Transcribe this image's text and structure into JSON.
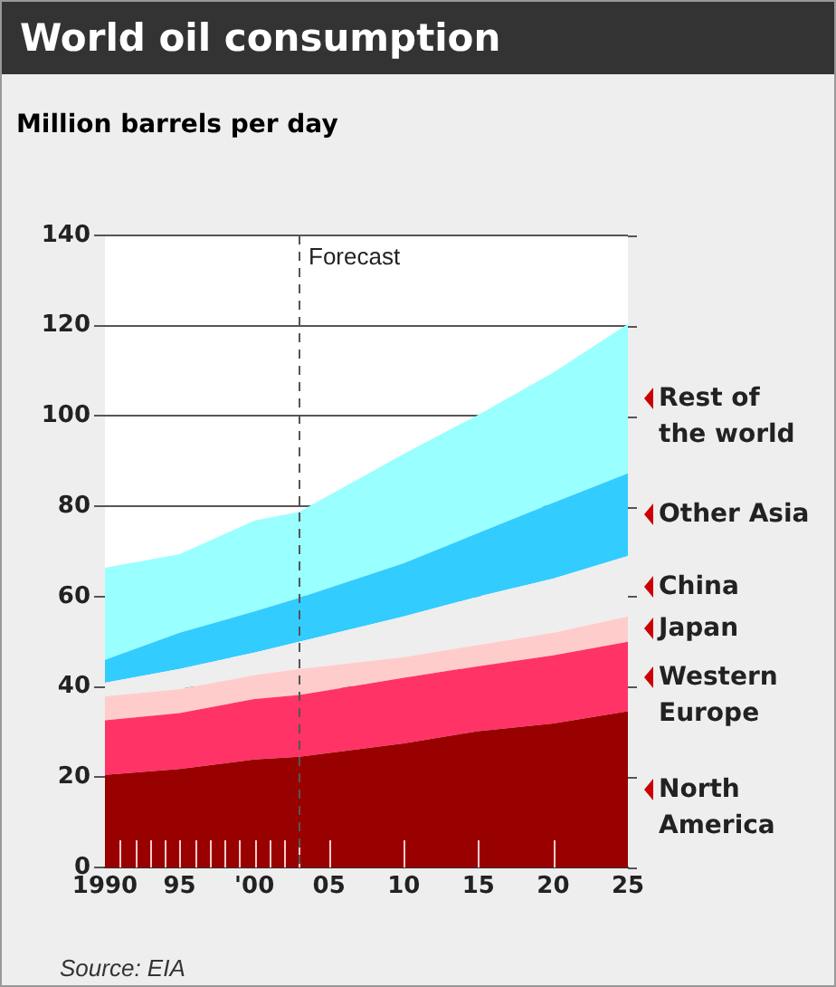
{
  "chart_data": {
    "type": "area",
    "stacked": true,
    "title": "World oil consumption",
    "ylabel": "Million barrels per day",
    "x": [
      1990,
      1995,
      2000,
      2003,
      2010,
      2015,
      2020,
      2025
    ],
    "series": [
      {
        "name": "North America",
        "color": "#990000",
        "values": [
          20.5,
          21.8,
          23.9,
          24.5,
          27.5,
          30.2,
          31.9,
          34.6
        ]
      },
      {
        "name": "Western Europe",
        "color": "#ff3366",
        "values": [
          12.1,
          12.4,
          13.4,
          13.7,
          14.5,
          14.4,
          15.1,
          15.4
        ]
      },
      {
        "name": "Japan",
        "color": "#ffcccc",
        "values": [
          5.3,
          5.3,
          5.3,
          5.8,
          4.6,
          4.7,
          5.0,
          5.6
        ]
      },
      {
        "name": "China",
        "color": "#eeeeee",
        "values": [
          3.0,
          4.5,
          5.0,
          6.0,
          9.0,
          10.7,
          12.0,
          13.4
        ]
      },
      {
        "name": "Other Asia",
        "color": "#33ccff",
        "values": [
          5.1,
          8.0,
          9.1,
          9.7,
          11.8,
          14.1,
          16.8,
          18.3
        ]
      },
      {
        "name": "Rest of the world",
        "color": "#99ffff",
        "values": [
          20.4,
          17.4,
          20.1,
          19.1,
          24.2,
          26.2,
          28.8,
          33.1
        ]
      }
    ],
    "xlim": [
      1990,
      2025
    ],
    "xticks": [
      1990,
      {
        "value": 1991,
        "label": null
      },
      {
        "value": 1992,
        "label": null
      },
      {
        "value": 1993,
        "label": null
      },
      {
        "value": 1994,
        "label": null
      },
      {
        "value": 1995,
        "label": "95"
      },
      {
        "value": 1996,
        "label": null
      },
      {
        "value": 1997,
        "label": null
      },
      {
        "value": 1998,
        "label": null
      },
      {
        "value": 1999,
        "label": null
      },
      {
        "value": 2000,
        "label": "'00"
      },
      {
        "value": 2001,
        "label": null
      },
      {
        "value": 2002,
        "label": null
      },
      {
        "value": 2003,
        "label": null
      },
      {
        "value": 2005,
        "label": "05"
      },
      {
        "value": 2010,
        "label": "10"
      },
      {
        "value": 2015,
        "label": "15"
      },
      {
        "value": 2020,
        "label": "20"
      },
      {
        "value": 2025,
        "label": "25"
      }
    ],
    "ylim": [
      0,
      140
    ],
    "yticks": [
      0,
      20,
      40,
      60,
      80,
      100,
      120,
      140
    ],
    "grid": "y",
    "legend": "right",
    "ref_lines": [
      {
        "axis": "x",
        "value": 2003,
        "label": "Forecast",
        "line_style": "dashed"
      }
    ],
    "annotations": [
      "Source: EIA"
    ]
  }
}
